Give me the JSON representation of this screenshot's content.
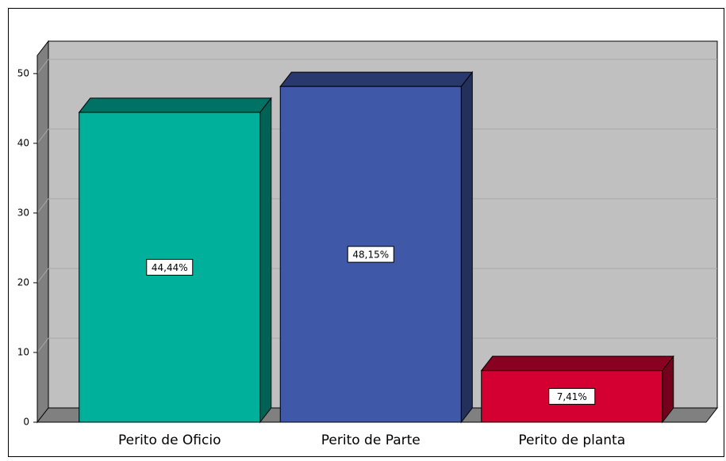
{
  "chart_data": {
    "type": "bar3d",
    "categories": [
      "Perito de Oficio",
      "Perito de Parte",
      "Perito de planta"
    ],
    "values": [
      44.44,
      48.15,
      7.41
    ],
    "value_labels": [
      "44,44%",
      "48,15%",
      "7,41%"
    ],
    "colors": [
      "#00b09b",
      "#3f58a8",
      "#d50032"
    ],
    "ylim": [
      0,
      52.6
    ],
    "yticks": [
      0,
      10,
      20,
      30,
      40,
      50
    ],
    "grid": true
  }
}
